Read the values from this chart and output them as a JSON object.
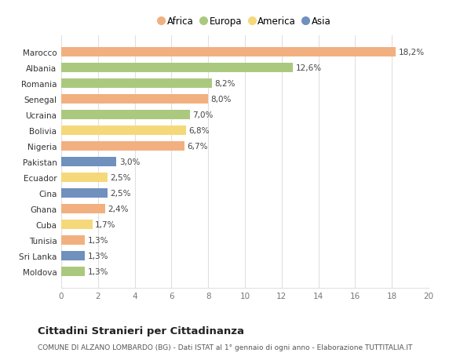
{
  "countries": [
    "Marocco",
    "Albania",
    "Romania",
    "Senegal",
    "Ucraina",
    "Bolivia",
    "Nigeria",
    "Pakistan",
    "Ecuador",
    "Cina",
    "Ghana",
    "Cuba",
    "Tunisia",
    "Sri Lanka",
    "Moldova"
  ],
  "values": [
    18.2,
    12.6,
    8.2,
    8.0,
    7.0,
    6.8,
    6.7,
    3.0,
    2.5,
    2.5,
    2.4,
    1.7,
    1.3,
    1.3,
    1.3
  ],
  "categories": [
    "Africa",
    "Europa",
    "Europa",
    "Africa",
    "Europa",
    "America",
    "Africa",
    "Asia",
    "America",
    "Asia",
    "Africa",
    "America",
    "Africa",
    "Asia",
    "Europa"
  ],
  "labels": [
    "18,2%",
    "12,6%",
    "8,2%",
    "8,0%",
    "7,0%",
    "6,8%",
    "6,7%",
    "3,0%",
    "2,5%",
    "2,5%",
    "2,4%",
    "1,7%",
    "1,3%",
    "1,3%",
    "1,3%"
  ],
  "colors": {
    "Africa": "#F2B080",
    "Europa": "#AAC97F",
    "America": "#F5D87A",
    "Asia": "#7090BE"
  },
  "legend_order": [
    "Africa",
    "Europa",
    "America",
    "Asia"
  ],
  "xlim": [
    0,
    20
  ],
  "xticks": [
    0,
    2,
    4,
    6,
    8,
    10,
    12,
    14,
    16,
    18,
    20
  ],
  "title": "Cittadini Stranieri per Cittadinanza",
  "subtitle": "COMUNE DI ALZANO LOMBARDO (BG) - Dati ISTAT al 1° gennaio di ogni anno - Elaborazione TUTTITALIA.IT",
  "bg_color": "#ffffff",
  "grid_color": "#e0e0e0",
  "bar_height": 0.6,
  "label_fontsize": 7.5,
  "tick_fontsize": 7.5,
  "xtick_fontsize": 7.5,
  "title_fontsize": 9.5,
  "subtitle_fontsize": 6.5,
  "legend_fontsize": 8.5
}
